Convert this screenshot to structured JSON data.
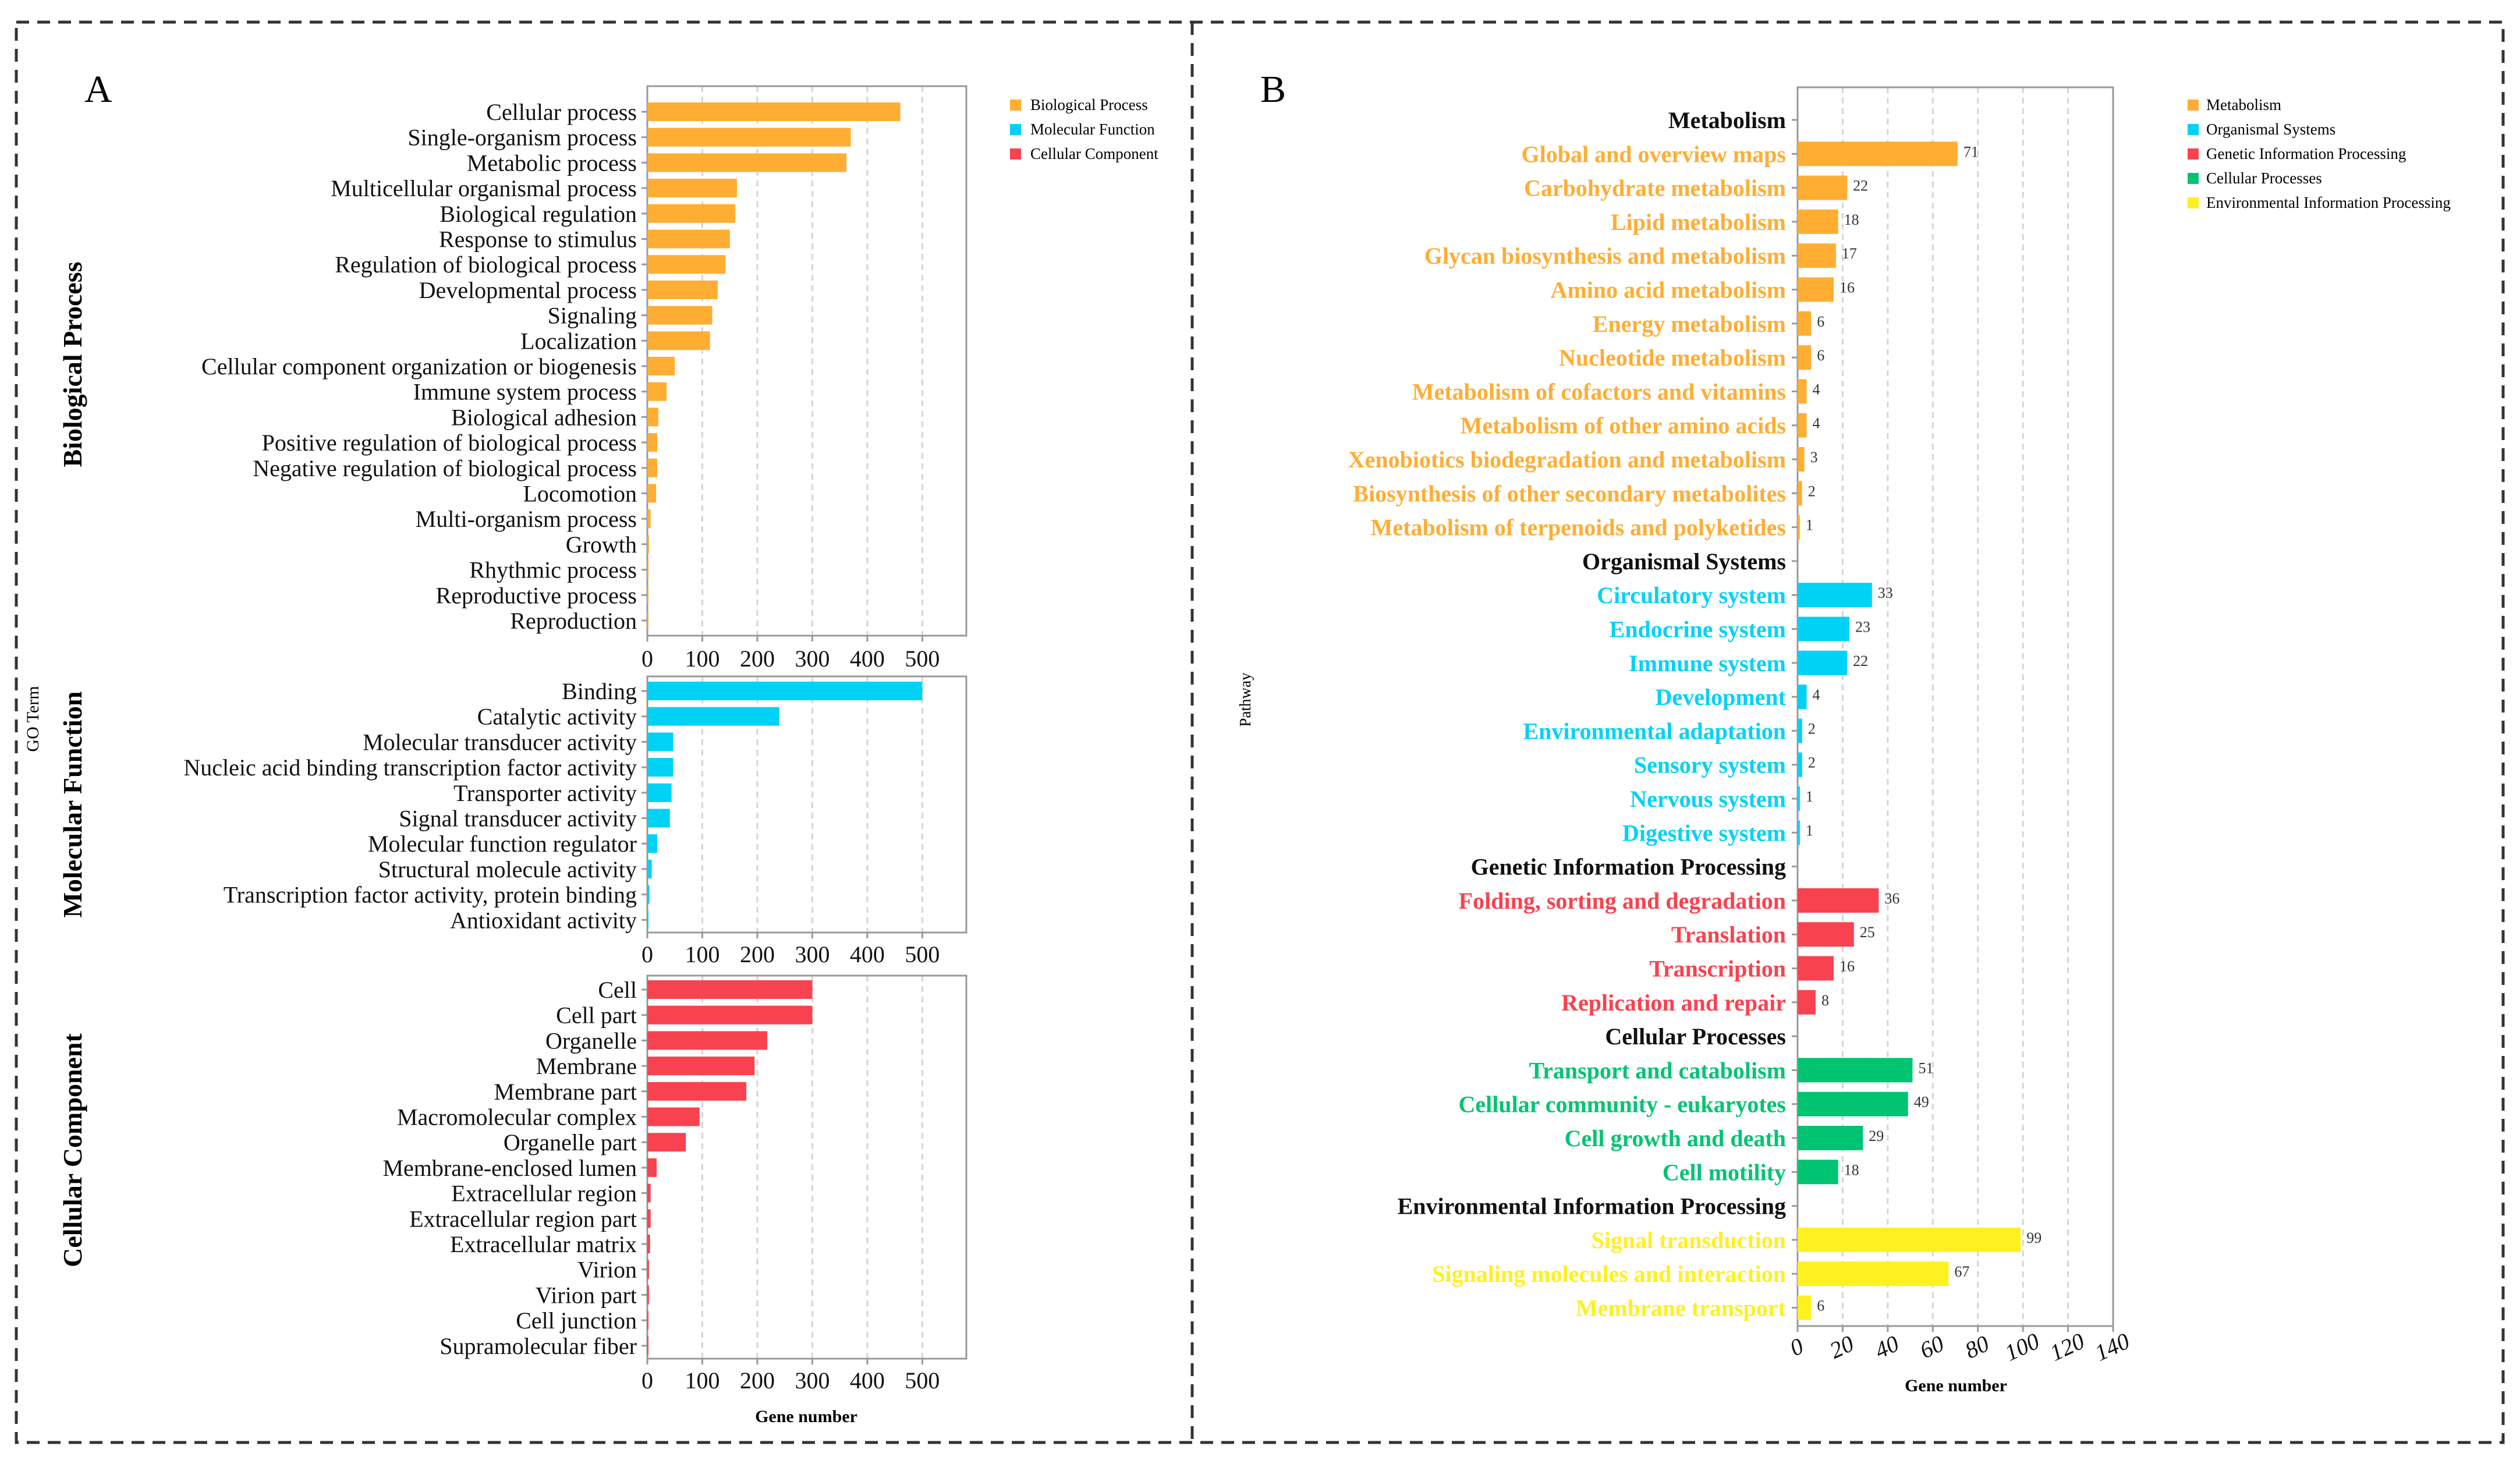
{
  "colors": {
    "bp": "#FFAD33",
    "mf": "#00D2F5",
    "cc": "#F9424F",
    "metabolism": "#FFAD33",
    "organismal": "#00D2F5",
    "genetic": "#F9424F",
    "cellular": "#00C472",
    "environmental": "#FFF01F",
    "grid": "#D5D5D5",
    "text": "#111111"
  },
  "chart_data": [
    {
      "id": "A",
      "panel_label": "A",
      "type": "bar",
      "orientation": "horizontal",
      "xlabel": "Gene number",
      "ylabel": "GO Term",
      "legend": [
        "Biological Process",
        "Molecular Function",
        "Cellular Component"
      ],
      "legend_position": "top-right",
      "xlim": [
        0,
        580
      ],
      "ticks": [
        0,
        100,
        200,
        300,
        400,
        500
      ],
      "groups": [
        {
          "key": "bp",
          "name": "Biological Process",
          "categories": [
            "Cellular process",
            "Single-organism process",
            "Metabolic process",
            "Multicellular organismal process",
            "Biological regulation",
            "Response to stimulus",
            "Regulation of biological process",
            "Developmental process",
            "Signaling",
            "Localization",
            "Cellular component organization or biogenesis",
            "Immune system process",
            "Biological adhesion",
            "Positive regulation of biological process",
            "Negative regulation of biological process",
            "Locomotion",
            "Multi-organism process",
            "Growth",
            "Rhythmic process",
            "Reproductive process",
            "Reproduction"
          ],
          "values": [
            460,
            370,
            362,
            163,
            160,
            150,
            142,
            128,
            118,
            114,
            50,
            35,
            20,
            18,
            18,
            16,
            6,
            3,
            2,
            2,
            1
          ]
        },
        {
          "key": "mf",
          "name": "Molecular Function",
          "categories": [
            "Binding",
            "Catalytic activity",
            "Molecular transducer activity",
            "Nucleic acid binding transcription factor activity",
            "Transporter activity",
            "Signal transducer activity",
            "Molecular function regulator",
            "Structural molecule activity",
            "Transcription factor activity, protein binding",
            "Antioxidant activity"
          ],
          "values": [
            500,
            240,
            47,
            47,
            44,
            41,
            18,
            8,
            4,
            2
          ]
        },
        {
          "key": "cc",
          "name": "Cellular Component",
          "categories": [
            "Cell",
            "Cell part",
            "Organelle",
            "Membrane",
            "Membrane part",
            "Macromolecular complex",
            "Organelle part",
            "Membrane-enclosed lumen",
            "Extracellular region",
            "Extracellular region part",
            "Extracellular matrix",
            "Virion",
            "Virion part",
            "Cell junction",
            "Supramolecular fiber"
          ],
          "values": [
            300,
            300,
            218,
            195,
            180,
            95,
            70,
            17,
            6,
            6,
            5,
            3,
            3,
            2,
            1
          ]
        }
      ]
    },
    {
      "id": "B",
      "panel_label": "B",
      "type": "bar",
      "orientation": "horizontal",
      "xlabel": "Gene number",
      "ylabel": "Pathway",
      "legend": [
        "Metabolism",
        "Organismal Systems",
        "Genetic Information Processing",
        "Cellular Processes",
        "Environmental Information Processing"
      ],
      "legend_position": "top-right",
      "xlim": [
        0,
        140
      ],
      "ticks": [
        0,
        20,
        40,
        60,
        80,
        100,
        120,
        140
      ],
      "groups": [
        {
          "key": "metabolism",
          "name": "Metabolism",
          "categories": [
            "Global and overview maps",
            "Carbohydrate metabolism",
            "Lipid metabolism",
            "Glycan biosynthesis and metabolism",
            "Amino acid metabolism",
            "Energy metabolism",
            "Nucleotide metabolism",
            "Metabolism of cofactors and vitamins",
            "Metabolism of other amino acids",
            "Xenobiotics biodegradation and metabolism",
            "Biosynthesis of other secondary metabolites",
            "Metabolism of terpenoids and polyketides"
          ],
          "values": [
            71,
            22,
            18,
            17,
            16,
            6,
            6,
            4,
            4,
            3,
            2,
            1
          ]
        },
        {
          "key": "organismal",
          "name": "Organismal Systems",
          "categories": [
            "Circulatory system",
            "Endocrine system",
            "Immune system",
            "Development",
            "Environmental adaptation",
            "Sensory system",
            "Nervous system",
            "Digestive system"
          ],
          "values": [
            33,
            23,
            22,
            4,
            2,
            2,
            1,
            1
          ]
        },
        {
          "key": "genetic",
          "name": "Genetic Information Processing",
          "categories": [
            "Folding, sorting and degradation",
            "Translation",
            "Transcription",
            "Replication and repair"
          ],
          "values": [
            36,
            25,
            16,
            8
          ]
        },
        {
          "key": "cellular",
          "name": "Cellular Processes",
          "categories": [
            "Transport and catabolism",
            "Cellular community - eukaryotes",
            "Cell growth and death",
            "Cell motility"
          ],
          "values": [
            51,
            49,
            29,
            18
          ]
        },
        {
          "key": "environmental",
          "name": "Environmental Information Processing",
          "categories": [
            "Signal transduction",
            "Signaling molecules and interaction",
            "Membrane transport"
          ],
          "values": [
            99,
            67,
            6
          ]
        }
      ]
    }
  ]
}
